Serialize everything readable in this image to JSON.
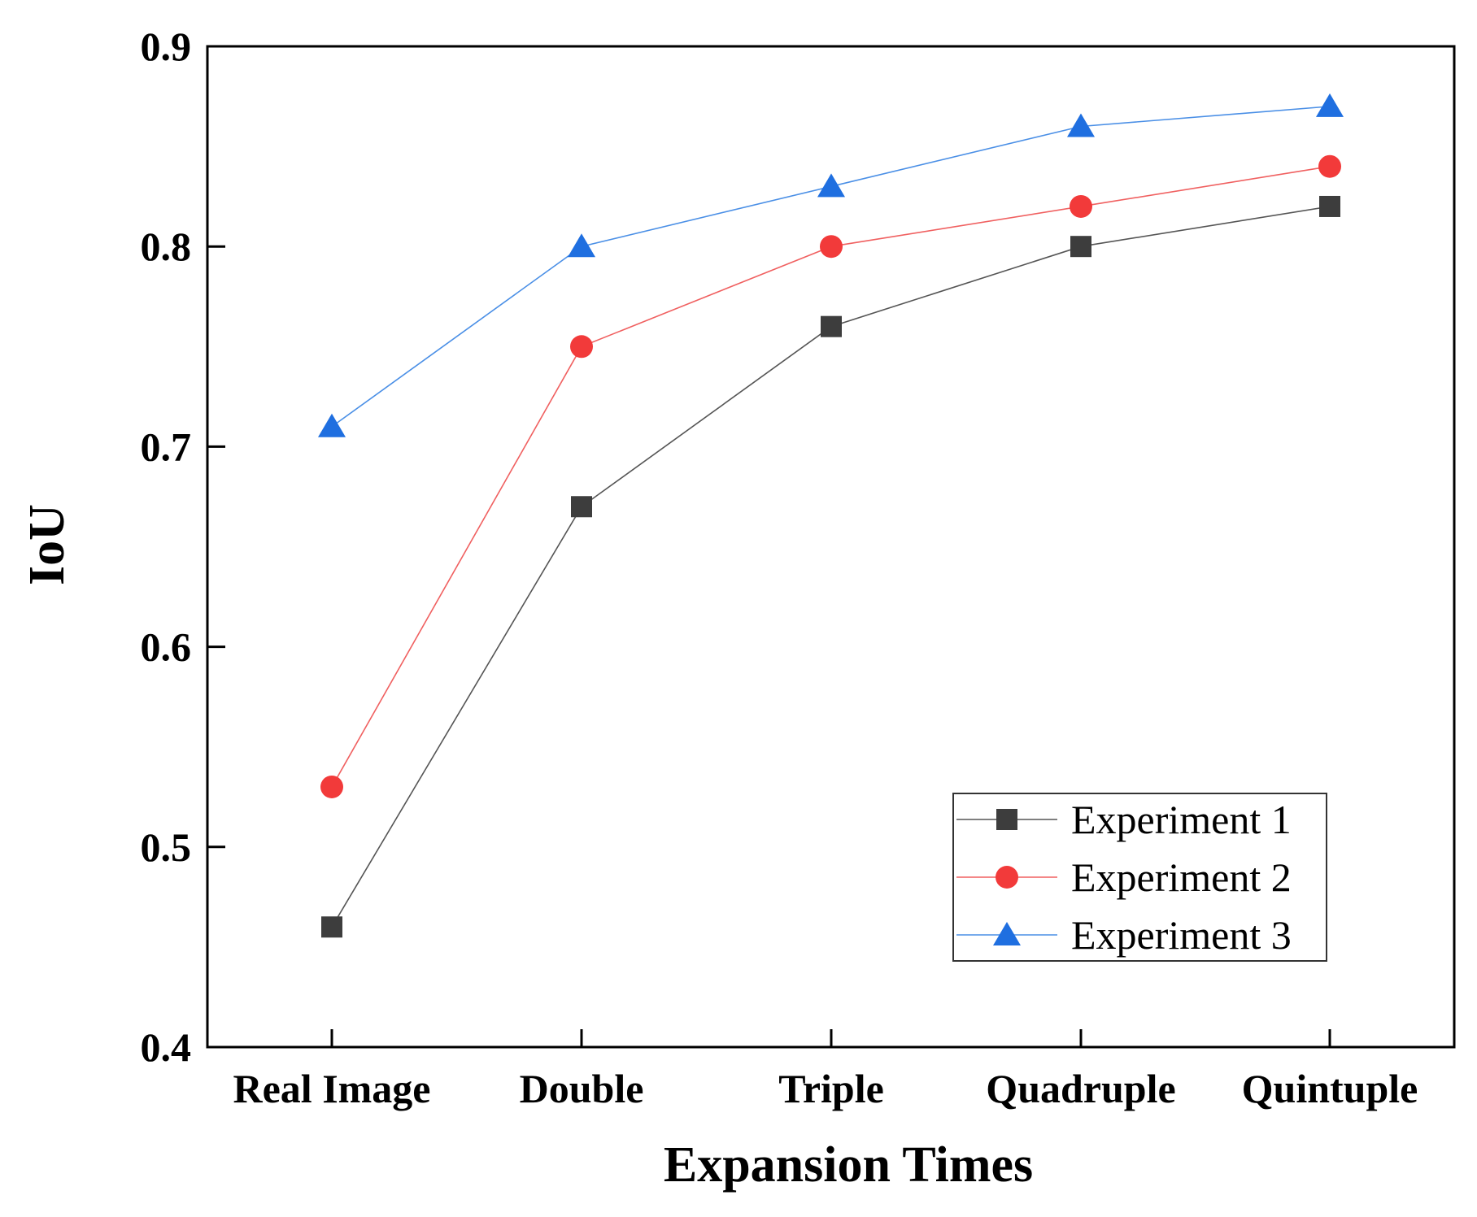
{
  "chart_data": {
    "type": "line",
    "title": "",
    "xlabel": "Expansion Times",
    "ylabel": "IoU",
    "categories": [
      "Real Image",
      "Double",
      "Triple",
      "Quadruple",
      "Quintuple"
    ],
    "ylim": [
      0.4,
      0.9
    ],
    "yticks": [
      "0.4",
      "0.5",
      "0.6",
      "0.7",
      "0.8",
      "0.9"
    ],
    "grid": false,
    "legend_position": "bottom-right",
    "series": [
      {
        "name": "Experiment 1",
        "marker": "square",
        "color": "#3d3d3d",
        "line_color": "#555555",
        "values": [
          0.46,
          0.67,
          0.76,
          0.8,
          0.82
        ]
      },
      {
        "name": "Experiment 2",
        "marker": "circle",
        "color": "#f23a3a",
        "line_color": "#f06060",
        "values": [
          0.53,
          0.75,
          0.8,
          0.82,
          0.84
        ]
      },
      {
        "name": "Experiment 3",
        "marker": "triangle",
        "color": "#1f6fe0",
        "line_color": "#4a8fe6",
        "values": [
          0.71,
          0.8,
          0.83,
          0.86,
          0.87
        ]
      }
    ]
  }
}
